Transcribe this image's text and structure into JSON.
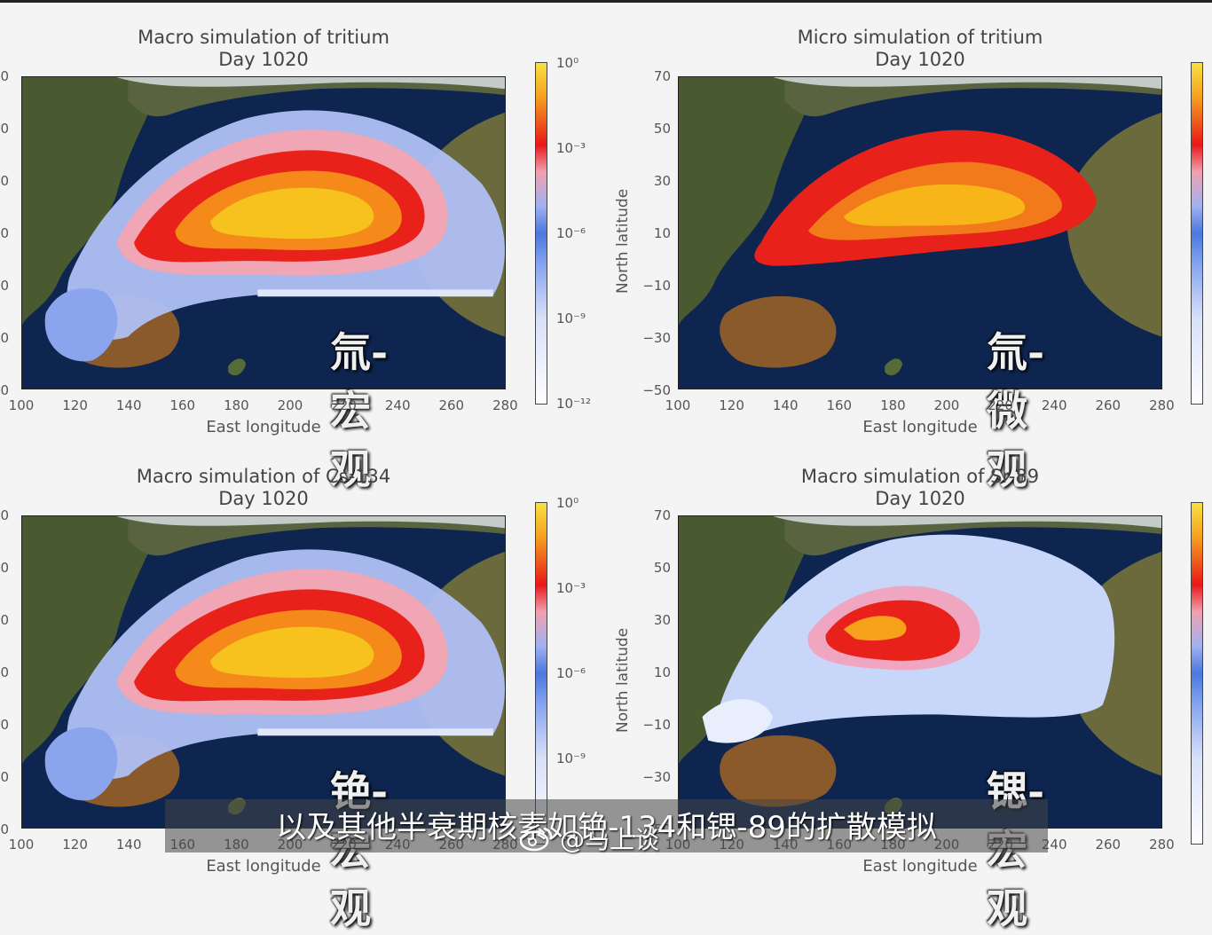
{
  "panels": [
    {
      "title": "Macro simulation of tritium",
      "day": "Day 1020",
      "xlabel": "East longitude",
      "ylabel": "",
      "overlay": "氚-宏观",
      "colorbar_ticks": [
        "10⁰",
        "10⁻³",
        "10⁻⁶",
        "10⁻⁹",
        "10⁻¹²"
      ],
      "plume": "macro"
    },
    {
      "title": "Micro simulation of tritium",
      "day": "Day 1020",
      "xlabel": "East longitude",
      "ylabel": "North latitude",
      "overlay": "氚-微观",
      "colorbar_ticks": [],
      "plume": "micro"
    },
    {
      "title": "Macro simulation of Cs-134",
      "day": "Day 1020",
      "xlabel": "East longitude",
      "ylabel": "",
      "overlay": "铯-宏观",
      "colorbar_ticks": [
        "10⁰",
        "10⁻³",
        "10⁻⁶",
        "10⁻⁹"
      ],
      "plume": "macro"
    },
    {
      "title": "Macro simulation of Sr-89",
      "day": "Day 1020",
      "xlabel": "East longitude",
      "ylabel": "North latitude",
      "overlay": "锶-宏观",
      "colorbar_ticks": [],
      "plume": "sr"
    }
  ],
  "x_ticks": [
    "100",
    "120",
    "140",
    "160",
    "180",
    "200",
    "220",
    "240",
    "260",
    "280"
  ],
  "y_ticks_full": [
    "70",
    "50",
    "30",
    "10",
    "−10",
    "−30",
    "−50"
  ],
  "y_ticks_left_cut": [
    "0",
    "0",
    "0",
    "0",
    "0",
    "0",
    "0"
  ],
  "subtitle": "以及其他半衰期核素如铯-134和锶-89的扩散模拟",
  "watermark": "@马上谈",
  "colors": {
    "ocean": "#0e2550",
    "land": "#4a5a30",
    "plume_core": "#f7b51a",
    "plume_mid": "#e8221a",
    "plume_low": "#6a8ff0"
  }
}
